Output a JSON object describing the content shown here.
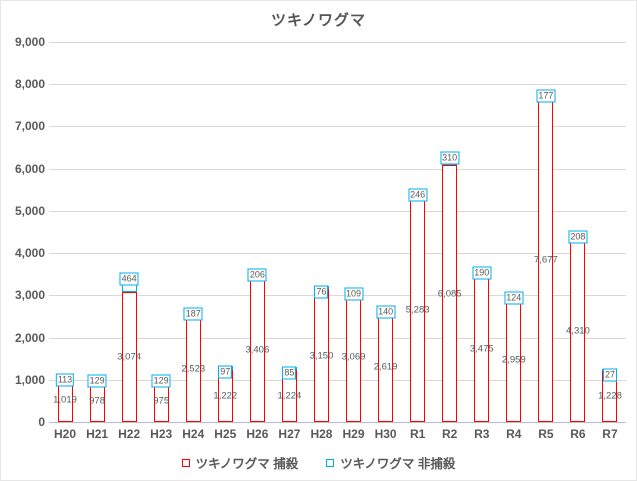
{
  "title": "ツキノワグマ",
  "chart_data": {
    "type": "bar",
    "stacked": true,
    "title": "ツキノワグマ",
    "xlabel": "",
    "ylabel": "",
    "categories": [
      "H20",
      "H21",
      "H22",
      "H23",
      "H24",
      "H25",
      "H26",
      "H27",
      "H28",
      "H29",
      "H30",
      "R1",
      "R2",
      "R3",
      "R4",
      "R5",
      "R6",
      "R7"
    ],
    "series": [
      {
        "name": "ツキノワグマ 捕殺",
        "color": "#ff0000",
        "values": [
          1019,
          978,
          3074,
          975,
          2523,
          1222,
          3406,
          1224,
          3150,
          3069,
          2619,
          5283,
          6085,
          3475,
          2959,
          7677,
          4310,
          1228
        ]
      },
      {
        "name": "ツキノワグマ 非捕殺",
        "color": "#00aeef",
        "values": [
          113,
          129,
          464,
          129,
          187,
          97,
          206,
          85,
          76,
          109,
          140,
          246,
          310,
          190,
          124,
          177,
          208,
          27
        ]
      }
    ],
    "ylim": [
      0,
      9000
    ],
    "y_ticks": [
      "0",
      "1,000",
      "2,000",
      "3,000",
      "4,000",
      "5,000",
      "6,000",
      "7,000",
      "8,000",
      "9,000"
    ],
    "grid": true,
    "legend_position": "bottom"
  },
  "colors": {
    "kill_series": "#ff0000",
    "nonkill_series": "#00aeef",
    "gridline": "#d9d9d9",
    "axis_text": "#595959"
  }
}
